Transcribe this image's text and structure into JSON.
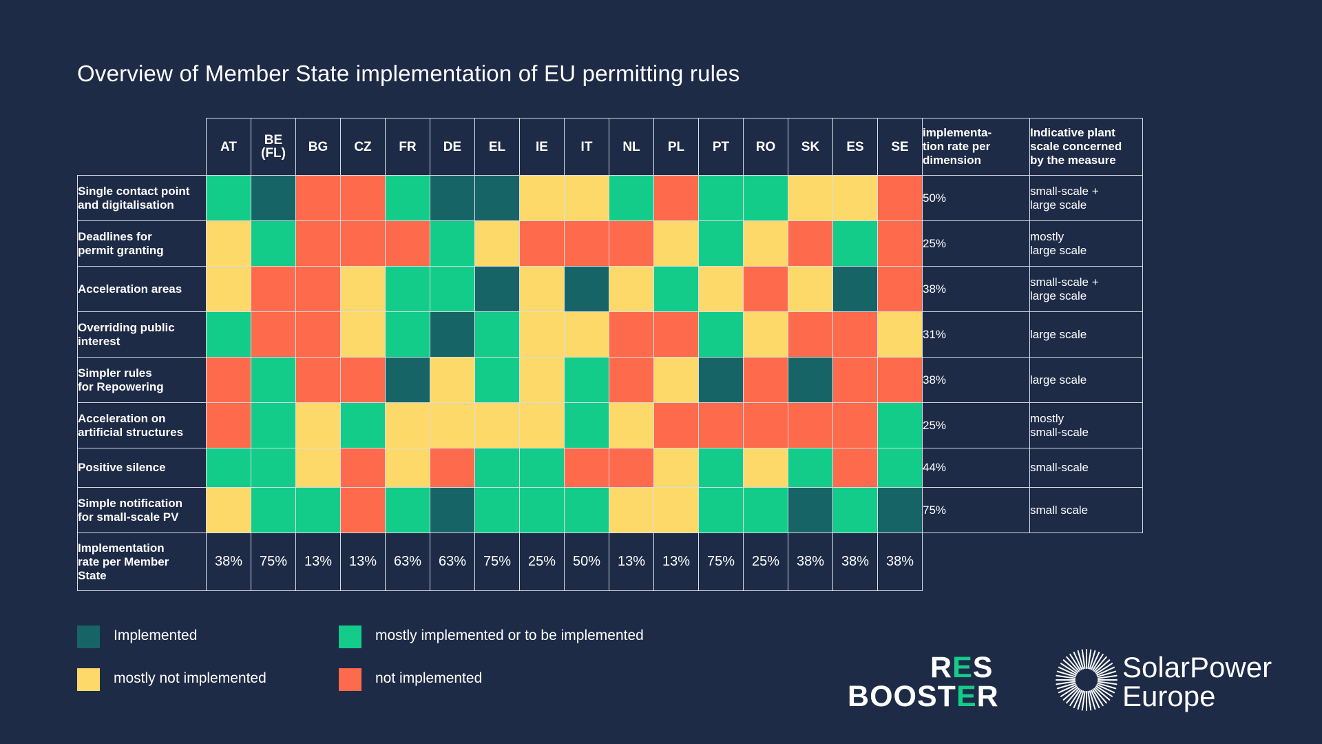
{
  "title": "Overview of Member State implementation of EU permitting rules",
  "colors": {
    "implemented": "#166466",
    "mostly_implemented": "#14cc8a",
    "mostly_not": "#fdd969",
    "not_implemented": "#fd6b4c",
    "background": "#1e2b47"
  },
  "chart_data": {
    "type": "heatmap",
    "title": "Overview of Member State implementation of EU permitting rules",
    "columns": [
      "AT",
      "BE\n(FL)",
      "BG",
      "CZ",
      "FR",
      "DE",
      "EL",
      "IE",
      "IT",
      "NL",
      "PL",
      "PT",
      "RO",
      "SK",
      "ES",
      "SE"
    ],
    "rate_header": "implementa-\ntion rate per\ndimension",
    "scale_header": "Indicative plant\nscale concerned\nby the measure",
    "totals_label": "Implementation\nrate per Member\nState",
    "status_key": {
      "I": "Implemented",
      "M": "mostly implemented or to be implemented",
      "Y": "mostly not implemented",
      "N": "not implemented"
    },
    "rows": [
      {
        "label": "Single contact point\nand digitalisation",
        "values": [
          "M",
          "I",
          "N",
          "N",
          "M",
          "I",
          "I",
          "Y",
          "Y",
          "M",
          "N",
          "M",
          "M",
          "Y",
          "Y",
          "N"
        ],
        "rate": "50%",
        "scale": "small-scale +\nlarge scale"
      },
      {
        "label": "Deadlines for\npermit granting",
        "values": [
          "Y",
          "M",
          "N",
          "N",
          "N",
          "M",
          "Y",
          "N",
          "N",
          "N",
          "Y",
          "M",
          "Y",
          "N",
          "M",
          "N"
        ],
        "rate": "25%",
        "scale": "mostly\nlarge scale"
      },
      {
        "label": "Acceleration areas",
        "values": [
          "Y",
          "N",
          "N",
          "Y",
          "M",
          "M",
          "I",
          "Y",
          "I",
          "Y",
          "M",
          "Y",
          "N",
          "Y",
          "I",
          "N"
        ],
        "rate": "38%",
        "scale": "small-scale +\nlarge scale"
      },
      {
        "label": "Overriding public\ninterest",
        "values": [
          "M",
          "N",
          "N",
          "Y",
          "M",
          "I",
          "M",
          "Y",
          "Y",
          "N",
          "N",
          "M",
          "Y",
          "N",
          "N",
          "Y"
        ],
        "rate": "31%",
        "scale": "large scale"
      },
      {
        "label": "Simpler rules\nfor Repowering",
        "values": [
          "N",
          "M",
          "N",
          "N",
          "I",
          "Y",
          "M",
          "Y",
          "M",
          "N",
          "Y",
          "I",
          "N",
          "I",
          "N",
          "N"
        ],
        "rate": "38%",
        "scale": "large scale"
      },
      {
        "label": "Acceleration on\nartificial structures",
        "values": [
          "N",
          "M",
          "Y",
          "M",
          "Y",
          "Y",
          "Y",
          "Y",
          "M",
          "Y",
          "N",
          "N",
          "N",
          "N",
          "N",
          "M"
        ],
        "rate": "25%",
        "scale": "mostly\nsmall-scale"
      },
      {
        "label": "Positive silence",
        "values": [
          "M",
          "M",
          "Y",
          "N",
          "Y",
          "N",
          "M",
          "M",
          "N",
          "N",
          "Y",
          "M",
          "Y",
          "M",
          "N",
          "M"
        ],
        "rate": "44%",
        "scale": "small-scale"
      },
      {
        "label": "Simple notification\nfor small-scale PV",
        "values": [
          "Y",
          "M",
          "M",
          "N",
          "M",
          "I",
          "M",
          "M",
          "M",
          "Y",
          "Y",
          "M",
          "M",
          "I",
          "M",
          "I"
        ],
        "rate": "75%",
        "scale": "small scale"
      }
    ],
    "member_state_rates": [
      "38%",
      "75%",
      "13%",
      "13%",
      "63%",
      "63%",
      "75%",
      "25%",
      "50%",
      "13%",
      "13%",
      "75%",
      "25%",
      "38%",
      "38%",
      "38%"
    ]
  },
  "legend": [
    {
      "label": "Implemented",
      "key": "I"
    },
    {
      "label": "mostly implemented or to be implemented",
      "key": "M"
    },
    {
      "label": "mostly not implemented",
      "key": "Y"
    },
    {
      "label": "not implemented",
      "key": "N"
    }
  ],
  "logos": {
    "res_booster_line1": [
      "R",
      "E",
      "S"
    ],
    "res_booster_line2": [
      "B",
      "O",
      "O",
      "S",
      "T",
      "E",
      "R"
    ],
    "solarpower_line1": "SolarPower",
    "solarpower_line2": "Europe"
  }
}
